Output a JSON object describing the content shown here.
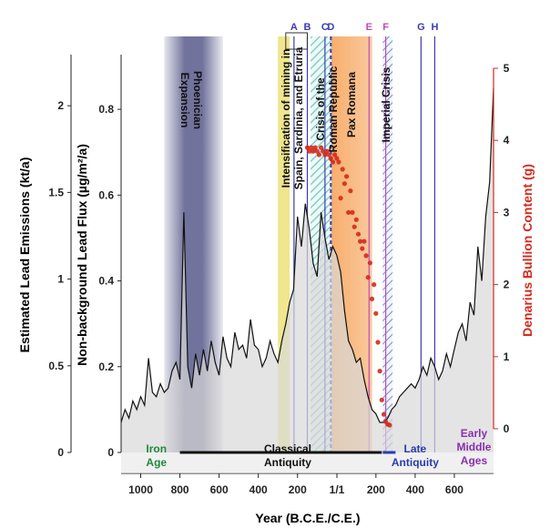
{
  "chart_data": {
    "type": "line",
    "x_unit": "Year (B.C.E./C.E.)",
    "x_range": [
      -1100,
      800
    ],
    "x_axis": {
      "title": "Year (B.C.E./C.E.)",
      "ticks": [
        {
          "value": -1000,
          "label": "1000"
        },
        {
          "value": -800,
          "label": "800"
        },
        {
          "value": -600,
          "label": "600"
        },
        {
          "value": -400,
          "label": "400"
        },
        {
          "value": -200,
          "label": "200"
        },
        {
          "value": 1,
          "label": "1/1"
        },
        {
          "value": 200,
          "label": "200"
        },
        {
          "value": 400,
          "label": "400"
        },
        {
          "value": 600,
          "label": "600"
        }
      ]
    },
    "y_axes": [
      {
        "id": "emissions",
        "title": "Estimated Lead Emissions (kt/a)",
        "range": [
          0,
          2.4
        ],
        "ticks": [
          {
            "value": 0,
            "label": "0"
          },
          {
            "value": 0.5,
            "label": "0.5"
          },
          {
            "value": 1,
            "label": "1"
          },
          {
            "value": 1.5,
            "label": "1.5"
          },
          {
            "value": 2,
            "label": "2"
          }
        ]
      },
      {
        "id": "flux",
        "title": "Non-background Lead Flux (µg/m²/a)",
        "range": [
          0,
          0.97
        ],
        "ticks": [
          {
            "value": 0,
            "label": "0"
          },
          {
            "value": 0.2,
            "label": "0.2"
          },
          {
            "value": 0.4,
            "label": "0.4"
          },
          {
            "value": 0.6,
            "label": "0.6"
          },
          {
            "value": 0.8,
            "label": "0.8"
          }
        ]
      },
      {
        "id": "denarius",
        "title": "Denarius Bullion Content (g)",
        "range": [
          0,
          5
        ],
        "color": "#d42a1c",
        "ticks": [
          {
            "value": 0,
            "label": "0"
          },
          {
            "value": 1,
            "label": "1"
          },
          {
            "value": 2,
            "label": "2"
          },
          {
            "value": 3,
            "label": "3"
          },
          {
            "value": 4,
            "label": "4"
          },
          {
            "value": 5,
            "label": "5"
          }
        ]
      }
    ],
    "shaded_periods": [
      {
        "name": "phoenician",
        "label": "Phoenician Expansion",
        "start": -880,
        "end": -580,
        "color": "#585a8a"
      },
      {
        "name": "intensification",
        "label": "Intensification of mining in Spain, Sardinia, and Etruria",
        "start": -300,
        "end": -240,
        "color": "#ece27a"
      },
      {
        "name": "crisis-republic",
        "label": "Crisis of the Roman Republic",
        "start": -133,
        "end": -27,
        "color": "#6fc7c0"
      },
      {
        "name": "pax-romana",
        "label": "Pax Romana",
        "start": -27,
        "end": 180,
        "color": "#f6a55c"
      },
      {
        "name": "imperial-crisis",
        "label": "Imperial Crisis",
        "start": 235,
        "end": 285,
        "color": "#6f8fd8"
      }
    ],
    "events": [
      {
        "label": "A",
        "x": -218,
        "color": "#3a3ab5"
      },
      {
        "label": "B",
        "x": -150,
        "color": "#3a3ab5"
      },
      {
        "label": "C",
        "x": -60,
        "color": "#3a3ab5"
      },
      {
        "label": "D",
        "x": -30,
        "color": "#3a3ab5"
      },
      {
        "label": "E",
        "x": 165,
        "color": "#c04ab8"
      },
      {
        "label": "F",
        "x": 250,
        "color": "#c04ab8"
      },
      {
        "label": "G",
        "x": 430,
        "color": "#3a3ab5"
      },
      {
        "label": "H",
        "x": 500,
        "color": "#3a3ab5"
      }
    ],
    "eras": [
      {
        "label": "Iron Age",
        "lines": [
          "Iron",
          "Age"
        ],
        "color": "#1f8a3a",
        "x": -920
      },
      {
        "label": "Classical Antiquity",
        "lines": [
          "Classical",
          "Antiquity"
        ],
        "color": "#111111",
        "x": -250,
        "bar_start": -800,
        "bar_end": 230
      },
      {
        "label": "Late Antiquity",
        "lines": [
          "Late",
          "Antiquity"
        ],
        "color": "#2a3bb0",
        "x": 400,
        "bar_start": 235,
        "bar_end": 300
      },
      {
        "label": "Early Middle Ages",
        "lines": [
          "Early",
          "Middle",
          "Ages"
        ],
        "color": "#8a2fb0",
        "x": 700
      }
    ],
    "flux_series": {
      "x": [
        -1100,
        -1080,
        -1060,
        -1040,
        -1020,
        -1000,
        -980,
        -960,
        -940,
        -920,
        -900,
        -880,
        -860,
        -840,
        -820,
        -800,
        -780,
        -760,
        -740,
        -720,
        -700,
        -680,
        -660,
        -640,
        -620,
        -600,
        -580,
        -560,
        -540,
        -520,
        -500,
        -480,
        -460,
        -440,
        -420,
        -400,
        -380,
        -360,
        -340,
        -320,
        -300,
        -280,
        -260,
        -240,
        -220,
        -200,
        -180,
        -160,
        -140,
        -120,
        -100,
        -80,
        -60,
        -40,
        -20,
        0,
        20,
        40,
        60,
        80,
        100,
        120,
        140,
        160,
        180,
        200,
        220,
        240,
        260,
        280,
        300,
        320,
        340,
        360,
        380,
        400,
        420,
        440,
        460,
        480,
        500,
        520,
        540,
        560,
        580,
        600,
        620,
        640,
        660,
        680,
        700,
        720,
        740,
        760,
        780,
        800
      ],
      "y": [
        0.07,
        0.1,
        0.08,
        0.12,
        0.1,
        0.13,
        0.11,
        0.22,
        0.14,
        0.13,
        0.16,
        0.14,
        0.15,
        0.19,
        0.21,
        0.17,
        0.56,
        0.2,
        0.15,
        0.23,
        0.18,
        0.24,
        0.19,
        0.26,
        0.21,
        0.18,
        0.27,
        0.22,
        0.2,
        0.28,
        0.24,
        0.25,
        0.22,
        0.31,
        0.25,
        0.24,
        0.2,
        0.22,
        0.26,
        0.23,
        0.21,
        0.26,
        0.3,
        0.35,
        0.38,
        0.55,
        0.48,
        0.58,
        0.52,
        0.44,
        0.41,
        0.56,
        0.5,
        0.45,
        0.48,
        0.46,
        0.42,
        0.33,
        0.26,
        0.24,
        0.21,
        0.22,
        0.17,
        0.13,
        0.1,
        0.09,
        0.07,
        0.07,
        0.08,
        0.1,
        0.11,
        0.13,
        0.14,
        0.15,
        0.16,
        0.15,
        0.17,
        0.2,
        0.18,
        0.22,
        0.2,
        0.17,
        0.19,
        0.23,
        0.2,
        0.24,
        0.28,
        0.3,
        0.26,
        0.35,
        0.32,
        0.48,
        0.4,
        0.55,
        0.63,
        0.85
      ]
    },
    "denarius_series": {
      "x": [
        -150,
        -140,
        -130,
        -120,
        -110,
        -100,
        -90,
        -80,
        -70,
        -60,
        -50,
        -40,
        -30,
        -20,
        -10,
        0,
        10,
        20,
        30,
        40,
        50,
        60,
        70,
        80,
        90,
        100,
        110,
        120,
        130,
        140,
        150,
        160,
        170,
        180,
        190,
        200,
        210,
        220,
        230,
        240,
        250,
        260,
        270
      ],
      "y": [
        3.9,
        3.85,
        3.9,
        3.85,
        3.9,
        3.85,
        3.8,
        3.9,
        3.85,
        3.8,
        3.85,
        3.8,
        3.75,
        3.7,
        3.8,
        3.75,
        3.7,
        3.2,
        3.6,
        3.4,
        3.5,
        3.0,
        3.3,
        3.0,
        2.8,
        2.9,
        2.7,
        2.6,
        2.5,
        2.6,
        2.4,
        2.1,
        2.3,
        1.8,
        2.0,
        1.6,
        1.2,
        0.8,
        0.4,
        0.2,
        0.1,
        0.06,
        0.05
      ]
    }
  }
}
